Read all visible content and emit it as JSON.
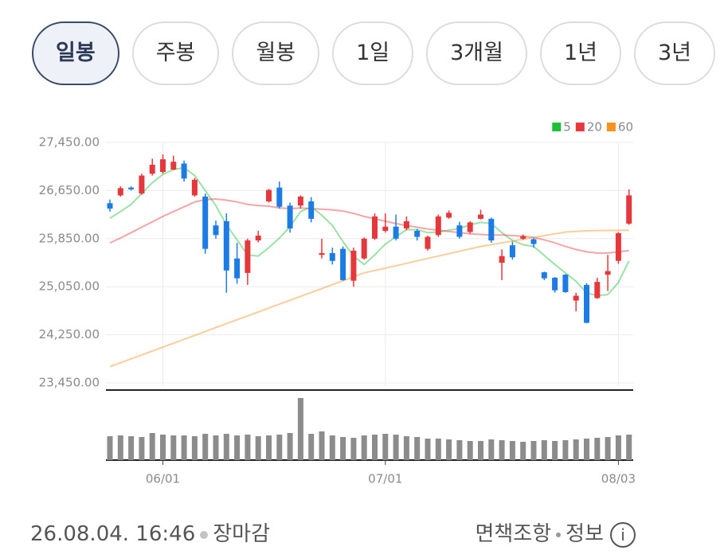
{
  "tabs": {
    "items": [
      "일봉",
      "주봉",
      "월봉",
      "1일",
      "3개월",
      "1년",
      "3년"
    ],
    "selected": 0
  },
  "chart_data": {
    "type": "candlestick",
    "categories": [
      null,
      null,
      null,
      null,
      null,
      "06/01",
      null,
      null,
      null,
      null,
      null,
      null,
      null,
      null,
      null,
      null,
      null,
      null,
      null,
      null,
      null,
      null,
      null,
      null,
      null,
      null,
      "07/01",
      null,
      null,
      null,
      null,
      null,
      null,
      null,
      null,
      null,
      null,
      null,
      null,
      null,
      null,
      null,
      null,
      null,
      null,
      null,
      null,
      null,
      "08/03",
      null
    ],
    "open": [
      26440,
      26570,
      26700,
      26600,
      26930,
      26960,
      27000,
      27100,
      26570,
      26550,
      26070,
      26140,
      25520,
      25280,
      25820,
      26470,
      26700,
      26400,
      26400,
      26470,
      25580,
      25610,
      25680,
      25150,
      25520,
      25850,
      25980,
      26050,
      26020,
      25980,
      25680,
      25910,
      26200,
      26070,
      25960,
      26180,
      26180,
      25450,
      25740,
      25850,
      25840,
      25290,
      25200,
      25250,
      24820,
      25080,
      24860,
      25250,
      25480,
      26100
    ],
    "high": [
      26500,
      26720,
      26720,
      26930,
      27180,
      27250,
      27230,
      27150,
      26860,
      26600,
      26150,
      26270,
      25780,
      25850,
      25980,
      26680,
      26800,
      26450,
      26570,
      26540,
      25850,
      25700,
      25720,
      25700,
      25870,
      26270,
      26270,
      26250,
      26220,
      26010,
      25900,
      26250,
      26320,
      26130,
      26140,
      26330,
      26200,
      25670,
      25800,
      25920,
      25860,
      25300,
      25210,
      25260,
      24950,
      25110,
      25200,
      25580,
      25960,
      26670
    ],
    "low": [
      26300,
      26550,
      26650,
      26580,
      26900,
      26930,
      26990,
      26800,
      26550,
      25600,
      25850,
      24950,
      25100,
      25080,
      25790,
      26450,
      26350,
      25950,
      26350,
      26120,
      25520,
      25420,
      25150,
      25050,
      25500,
      25830,
      25950,
      25820,
      25990,
      25820,
      25650,
      25880,
      26180,
      25850,
      25930,
      26170,
      25780,
      25160,
      25500,
      25830,
      25700,
      25160,
      24950,
      24950,
      24640,
      24440,
      24850,
      24980,
      25430,
      26080
    ],
    "close": [
      26350,
      26690,
      26670,
      26900,
      27080,
      27170,
      27130,
      26850,
      26830,
      25680,
      25910,
      25320,
      25190,
      25820,
      25900,
      26660,
      26380,
      26020,
      26550,
      26180,
      25610,
      25480,
      25160,
      25650,
      25850,
      26220,
      26050,
      25850,
      26140,
      25880,
      25880,
      26220,
      26280,
      25880,
      26120,
      26250,
      25820,
      25560,
      25540,
      25890,
      25760,
      25190,
      24990,
      24960,
      24900,
      24450,
      25130,
      25310,
      25940,
      26570
    ],
    "up_color": "#e5383d",
    "down_color": "#1d7ce3",
    "ylim": [
      23450,
      27450
    ],
    "yticks": [
      {
        "value": 23450,
        "label": "23,450.00"
      },
      {
        "value": 24250,
        "label": "24,250.00"
      },
      {
        "value": 25050,
        "label": "25,050.00"
      },
      {
        "value": 25850,
        "label": "25,850.00"
      },
      {
        "value": 26650,
        "label": "26,650.00"
      },
      {
        "value": 27450,
        "label": "27,450.00"
      }
    ],
    "grid": true,
    "series": [
      {
        "name": "5",
        "color": "#1fbf3a",
        "values": [
          26190,
          26300,
          26420,
          26600,
          26780,
          26920,
          27000,
          27030,
          26900,
          26650,
          26400,
          26080,
          25830,
          25580,
          25560,
          25700,
          25860,
          26050,
          26300,
          26380,
          26240,
          26070,
          25800,
          25560,
          25420,
          25580,
          25760,
          25880,
          26000,
          26000,
          25950,
          25960,
          25990,
          26020,
          26080,
          26120,
          26100,
          25950,
          25820,
          25750,
          25720,
          25570,
          25420,
          25280,
          25140,
          24950,
          24900,
          24920,
          25120,
          25480
        ]
      },
      {
        "name": "20",
        "color": "#e8383d",
        "values": [
          25780,
          25860,
          25950,
          26040,
          26130,
          26220,
          26300,
          26380,
          26460,
          26500,
          26510,
          26490,
          26460,
          26420,
          26400,
          26390,
          26360,
          26350,
          26360,
          26350,
          26340,
          26330,
          26310,
          26270,
          26220,
          26180,
          26140,
          26100,
          26070,
          26040,
          26010,
          25990,
          25970,
          25950,
          25930,
          25920,
          25910,
          25910,
          25900,
          25890,
          25870,
          25830,
          25780,
          25720,
          25670,
          25630,
          25610,
          25610,
          25630,
          25650
        ]
      },
      {
        "name": "60",
        "color": "#f5931e",
        "values": [
          23720,
          23785,
          23850,
          23915,
          23980,
          24045,
          24110,
          24175,
          24240,
          24305,
          24370,
          24435,
          24500,
          24565,
          24630,
          24695,
          24760,
          24825,
          24890,
          24955,
          25020,
          25085,
          25150,
          25215,
          25280,
          25320,
          25360,
          25400,
          25440,
          25480,
          25520,
          25560,
          25600,
          25640,
          25680,
          25720,
          25750,
          25780,
          25810,
          25840,
          25870,
          25900,
          25930,
          25960,
          25970,
          25980,
          25985,
          25985,
          25990,
          25990
        ]
      }
    ],
    "volume": {
      "color": "#8c8c8c",
      "ylim": [
        0,
        80
      ],
      "values": [
        30,
        31,
        30,
        29,
        34,
        32,
        31,
        31,
        30,
        33,
        31,
        33,
        31,
        32,
        30,
        31,
        32,
        34,
        78,
        33,
        36,
        31,
        29,
        28,
        31,
        32,
        33,
        32,
        30,
        29,
        27,
        27,
        26,
        25,
        24,
        24,
        26,
        25,
        24,
        23,
        24,
        25,
        24,
        25,
        26,
        27,
        28,
        29,
        31,
        32
      ]
    }
  },
  "footer": {
    "datetime": "26.08.04. 16:46",
    "status": "장마감",
    "disclaimer": "면책조항",
    "info": "정보",
    "info_icon": "i"
  }
}
